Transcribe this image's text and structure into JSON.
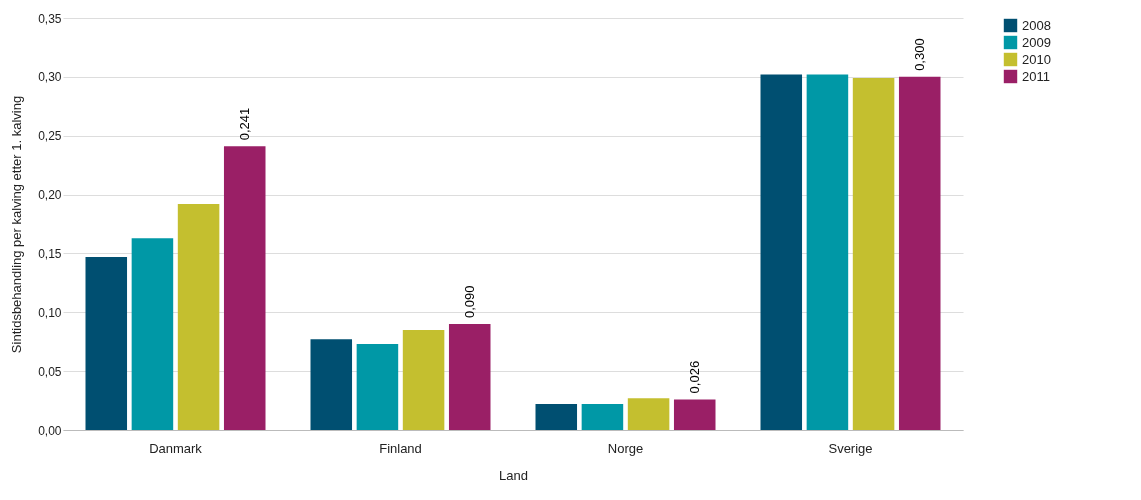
{
  "chart_data": {
    "type": "bar",
    "xlabel": "Land",
    "ylabel": "Sintidsbehandling per kalving etter 1. kalving",
    "categories": [
      "Danmark",
      "Finland",
      "Norge",
      "Sverige"
    ],
    "series": [
      {
        "name": "2008",
        "color": "#004f71",
        "values": [
          0.147,
          0.077,
          0.022,
          0.302
        ]
      },
      {
        "name": "2009",
        "color": "#0098a6",
        "values": [
          0.163,
          0.073,
          0.022,
          0.302
        ]
      },
      {
        "name": "2010",
        "color": "#c4bf2f",
        "values": [
          0.192,
          0.085,
          0.027,
          0.299
        ]
      },
      {
        "name": "2011",
        "color": "#9a1f66",
        "values": [
          0.241,
          0.09,
          0.026,
          0.3
        ],
        "value_labels": [
          "0,241",
          "0,090",
          "0,026",
          "0,300"
        ]
      }
    ],
    "ylim": [
      0,
      0.35
    ],
    "yticks": [
      {
        "value": 0,
        "label": "0,00"
      },
      {
        "value": 0.05,
        "label": "0,05"
      },
      {
        "value": 0.1,
        "label": "0,10"
      },
      {
        "value": 0.15,
        "label": "0,15"
      },
      {
        "value": 0.2,
        "label": "0,20"
      },
      {
        "value": 0.25,
        "label": "0,25"
      },
      {
        "value": 0.3,
        "label": "0,30"
      },
      {
        "value": 0.35,
        "label": "0,35"
      }
    ],
    "grid": "y",
    "legend": "right"
  }
}
